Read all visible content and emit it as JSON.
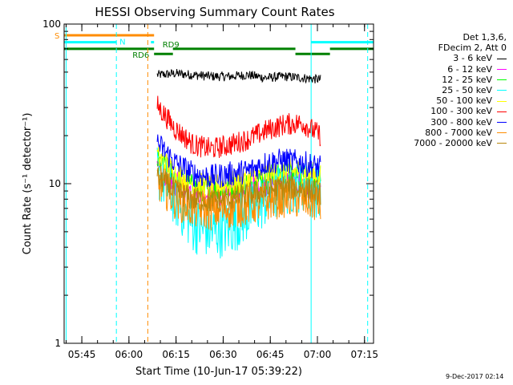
{
  "chart_data": {
    "type": "line",
    "title": "HESSI Observing Summary Count Rates",
    "xlabel": "Start Time (10-Jun-17 05:39:22)",
    "ylabel": "Count Rate (s⁻¹ detector⁻¹)",
    "yscale": "log",
    "ylim": [
      1,
      100
    ],
    "xlim_minutes_after_0539": [
      0,
      98.5
    ],
    "x_ticks": [
      "05:45",
      "06:00",
      "06:15",
      "06:30",
      "06:45",
      "07:00",
      "07:15"
    ],
    "y_ticks": [
      "1",
      "10",
      "100"
    ],
    "legend_header": [
      "Det 1,3,6,",
      "FDecim 2, Att 0"
    ],
    "series": [
      {
        "name": "3 - 6 keV",
        "color": "#000000",
        "start": "06:09",
        "end": "07:01",
        "values": [
          48,
          49,
          48,
          47,
          47,
          48,
          46,
          47,
          46,
          45
        ]
      },
      {
        "name": "6 - 12 keV",
        "color": "#ff00ff",
        "start": "06:09",
        "end": "07:01",
        "values": [
          13,
          10,
          9,
          8.5,
          8.8,
          9.5,
          10,
          10.5,
          10.2,
          9
        ]
      },
      {
        "name": "12 - 25 keV",
        "color": "#00ff00",
        "start": "06:09",
        "end": "07:01",
        "values": [
          14,
          11,
          9.5,
          9,
          9.3,
          10,
          11,
          11.5,
          11,
          10
        ]
      },
      {
        "name": "25 - 50 keV",
        "color": "#00ffff",
        "start": "06:09",
        "end": "07:01",
        "values": [
          12,
          8,
          5.5,
          5,
          5.3,
          6.5,
          8,
          9.5,
          10,
          9
        ]
      },
      {
        "name": "50 - 100 keV",
        "color": "#ffff00",
        "start": "06:09",
        "end": "07:01",
        "values": [
          15,
          11.5,
          10,
          9.5,
          10,
          10.5,
          11.5,
          12,
          12,
          11
        ]
      },
      {
        "name": "100 - 300 keV",
        "color": "#ff0000",
        "start": "06:09",
        "end": "07:01",
        "values": [
          31,
          22,
          17.5,
          16.5,
          17.5,
          19,
          21.5,
          23.5,
          24,
          20
        ]
      },
      {
        "name": "300 - 800 keV",
        "color": "#0000ff",
        "start": "06:09",
        "end": "07:01",
        "values": [
          18,
          13.5,
          11.5,
          11,
          11.5,
          12,
          13.5,
          14,
          13.5,
          12.5
        ]
      },
      {
        "name": "800 - 7000 keV",
        "color": "#ff8c00",
        "start": "06:09",
        "end": "07:01",
        "values": [
          10.5,
          8,
          7,
          6.8,
          7,
          7.3,
          7.8,
          8.2,
          8,
          7.5
        ]
      },
      {
        "name": "7000 - 20000 keV",
        "color": "#b8860b",
        "start": "06:09",
        "end": "07:01",
        "values": [
          11,
          9,
          8,
          7.8,
          8,
          8.5,
          9,
          9.5,
          9.3,
          8.8
        ]
      }
    ],
    "annotations": {
      "flags": [
        {
          "label": "S",
          "color": "#ff8c00",
          "start": "05:39",
          "end": "06:08",
          "level": 85
        },
        {
          "label": "N",
          "color": "#00ffff",
          "start": "05:39",
          "end": "05:56",
          "level": 77
        },
        {
          "label": "",
          "color": "#00ffff",
          "start": "06:07",
          "end": "06:08",
          "level": 77
        },
        {
          "label": "",
          "color": "#00ffff",
          "start": "06:58",
          "end": "07:18",
          "level": 77
        },
        {
          "label": "RD9",
          "color": "#008000",
          "start": "06:14",
          "end": "06:53",
          "level": 70
        },
        {
          "label": "",
          "color": "#008000",
          "start": "05:39",
          "end": "06:08",
          "level": 70
        },
        {
          "label": "",
          "color": "#008000",
          "start": "07:04",
          "end": "07:18",
          "level": 70
        },
        {
          "label": "RD6",
          "color": "#008000",
          "start": "06:08",
          "end": "06:14",
          "level": 65
        },
        {
          "label": "",
          "color": "#008000",
          "start": "06:53",
          "end": "07:04",
          "level": 65
        }
      ],
      "vlines": [
        {
          "time": "05:40",
          "color": "#00ffff",
          "style": "solid"
        },
        {
          "time": "05:56",
          "color": "#00ffff",
          "style": "dashed"
        },
        {
          "time": "06:06",
          "color": "#ff8c00",
          "style": "dashed"
        },
        {
          "time": "06:58",
          "color": "#00ffff",
          "style": "solid"
        },
        {
          "time": "07:16",
          "color": "#00ffff",
          "style": "dashed"
        }
      ]
    }
  },
  "timestamp": "9-Dec-2017 02:14"
}
